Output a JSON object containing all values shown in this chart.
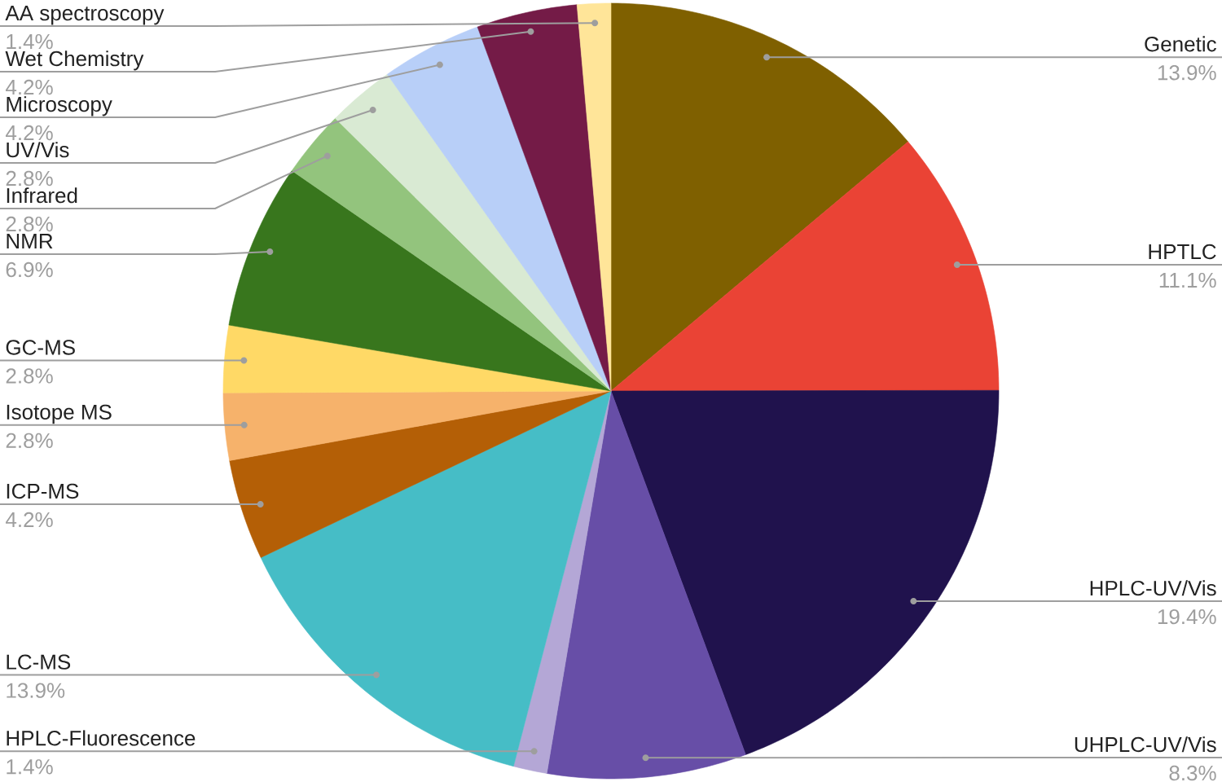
{
  "chart_data": {
    "type": "pie",
    "categories": [
      "Genetic",
      "HPTLC",
      "HPLC-UV/Vis",
      "UHPLC-UV/Vis",
      "HPLC-Fluorescence",
      "LC-MS",
      "ICP-MS",
      "Isotope MS",
      "GC-MS",
      "NMR",
      "Infrared",
      "UV/Vis",
      "Microscopy",
      "Wet Chemistry",
      "AA spectroscopy"
    ],
    "values": [
      13.9,
      11.1,
      19.4,
      8.3,
      1.4,
      13.9,
      4.2,
      2.8,
      2.8,
      6.9,
      2.8,
      2.8,
      4.2,
      4.2,
      1.4
    ],
    "colors": [
      "#7f6000",
      "#ea4335",
      "#20124d",
      "#674ea7",
      "#b4a7d6",
      "#46bdc6",
      "#b45f06",
      "#f6b26b",
      "#ffd966",
      "#38761d",
      "#93c47d",
      "#d9ead3",
      "#b8cff8",
      "#741b47",
      "#ffe599"
    ],
    "value_labels": [
      "13.9%",
      "11.1%",
      "19.4%",
      "8.3%",
      "1.4%",
      "13.9%",
      "4.2%",
      "2.8%",
      "2.8%",
      "6.9%",
      "2.8%",
      "2.8%",
      "4.2%",
      "4.2%",
      "1.4%"
    ]
  }
}
